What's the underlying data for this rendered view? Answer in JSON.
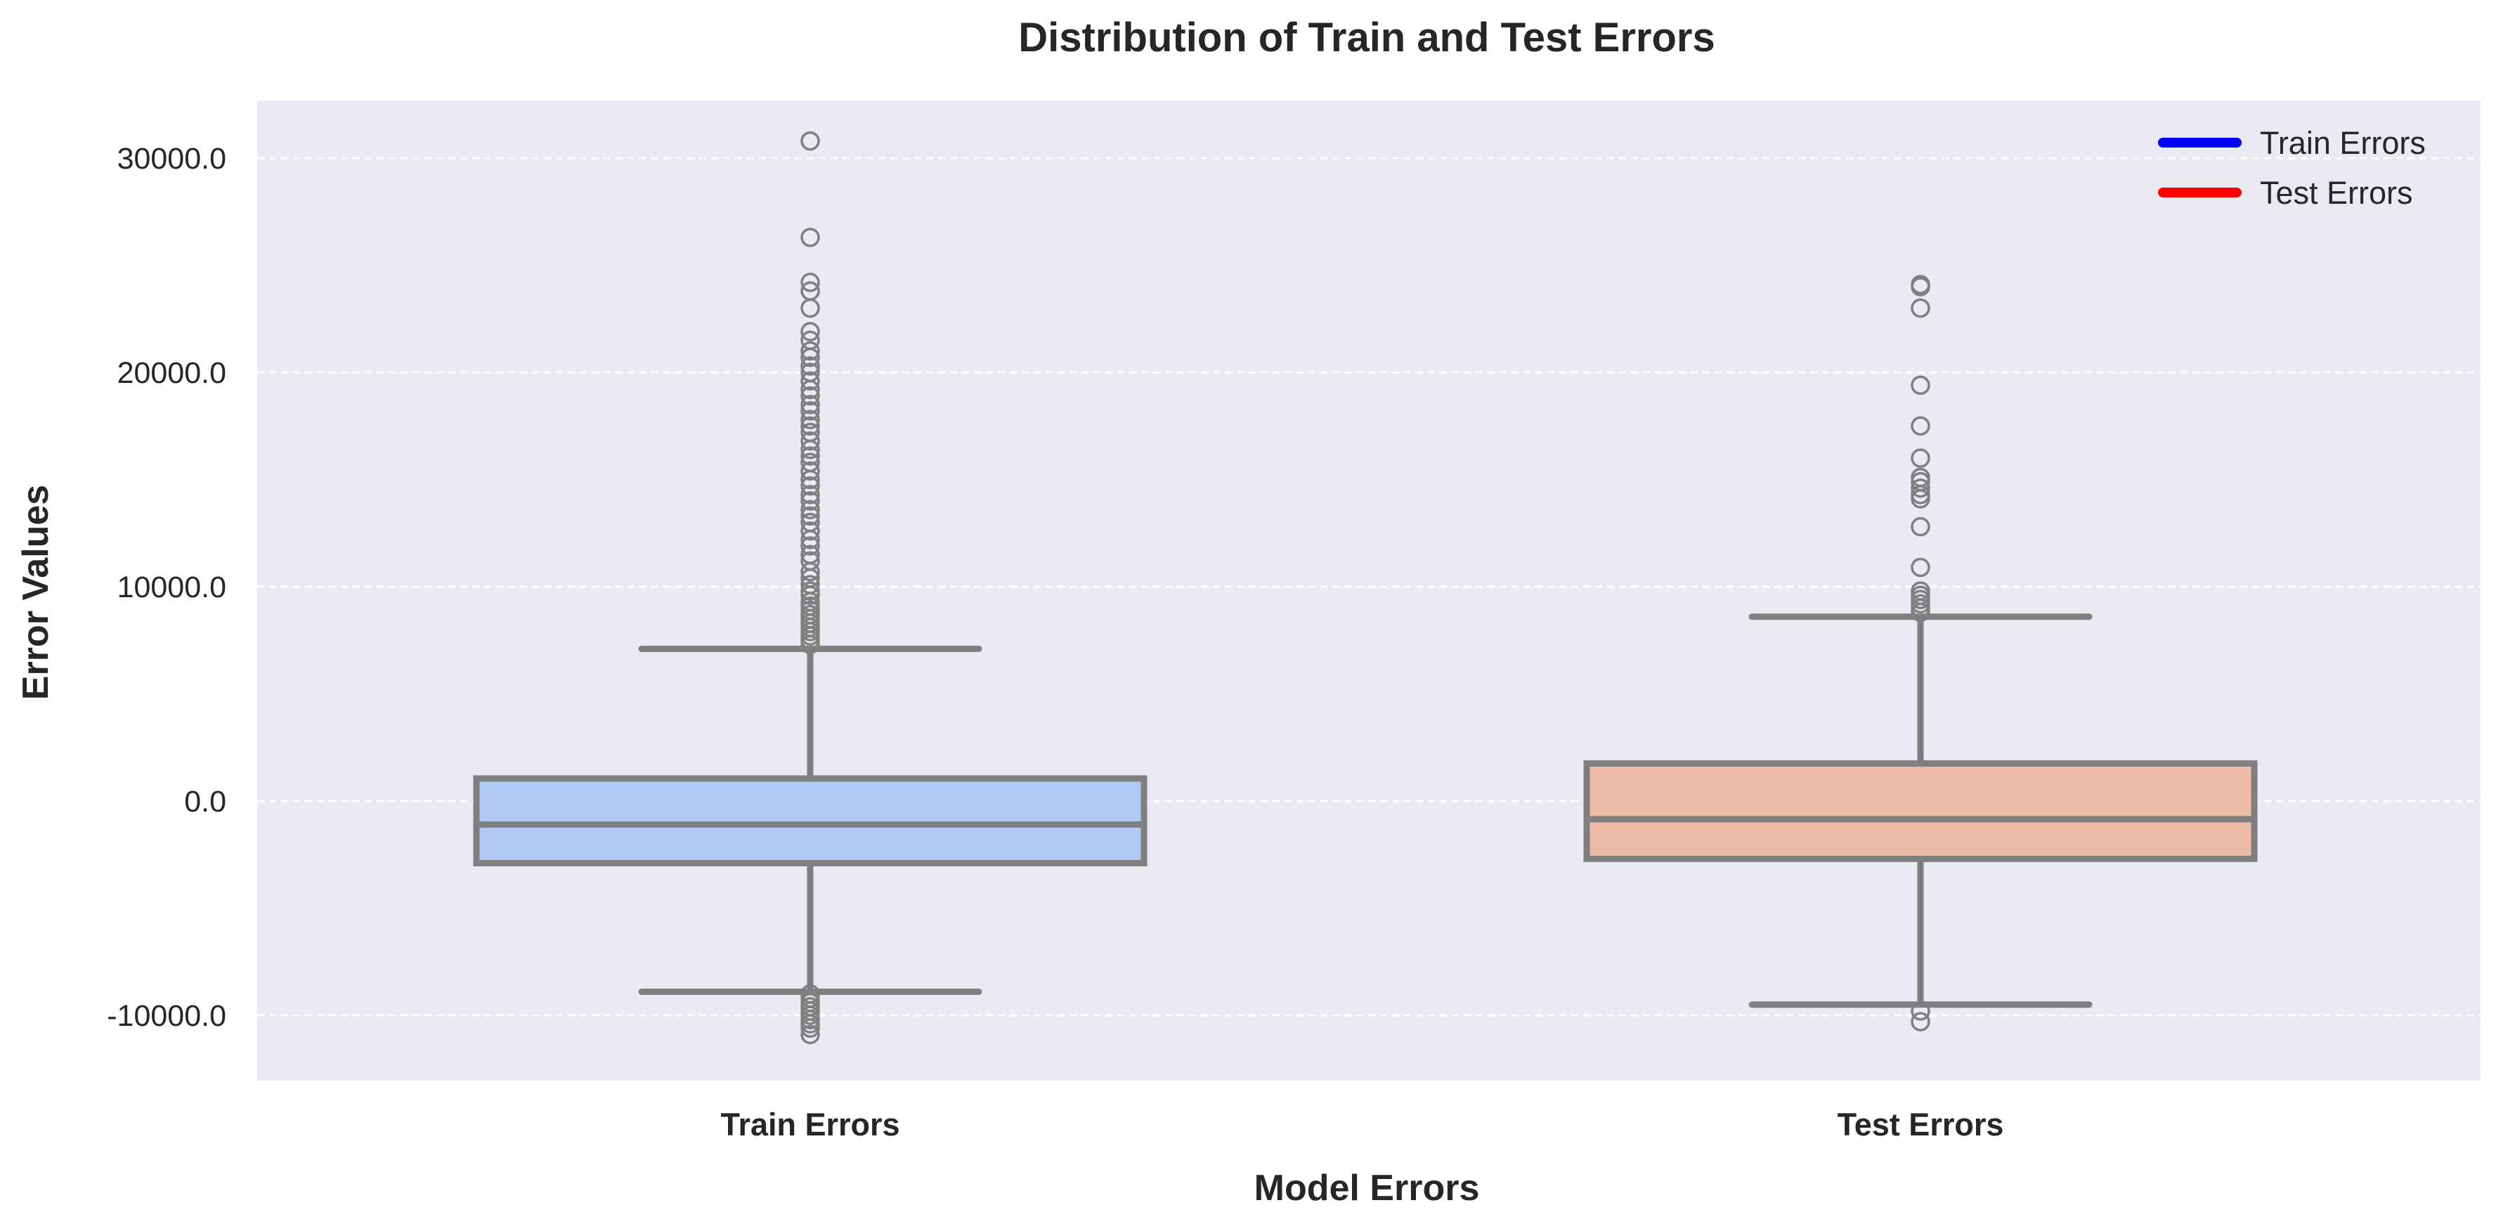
{
  "chart_data": {
    "type": "box",
    "title": "Distribution of Train and Test Errors",
    "xlabel": "Model Errors",
    "ylabel": "Error Values",
    "categories": [
      "Train Errors",
      "Test Errors"
    ],
    "ylim": [
      -13000,
      32700
    ],
    "yticks": [
      -10000,
      0,
      10000,
      20000,
      30000
    ],
    "ytick_labels": [
      "-10000.0",
      "0.0",
      "10000.0",
      "20000.0",
      "30000.0"
    ],
    "grid": true,
    "legend": {
      "placement": "top-right",
      "entries": [
        {
          "label": "Train Errors",
          "color": "#0000ff"
        },
        {
          "label": "Test Errors",
          "color": "#ff0000"
        }
      ]
    },
    "series": [
      {
        "category": "Train Errors",
        "fill_color": "#b1c9f5",
        "whisker_low": -8900,
        "q1": -2900,
        "median": -1100,
        "q3": 1050,
        "whisker_high": 7100,
        "outliers": [
          30800,
          26300,
          24200,
          23800,
          23000,
          21900,
          21500,
          21000,
          20700,
          20300,
          20000,
          19600,
          19200,
          18900,
          18500,
          18200,
          17800,
          17500,
          17200,
          16800,
          16400,
          16100,
          15800,
          15400,
          15000,
          14700,
          14300,
          14000,
          13600,
          13300,
          13000,
          12600,
          12200,
          11900,
          11500,
          11200,
          10700,
          10400,
          10100,
          9800,
          9600,
          9300,
          9100,
          8900,
          8700,
          8500,
          8300,
          8100,
          7900,
          7700,
          7500,
          7300,
          -9000,
          -9200,
          -9400,
          -9600,
          -9800,
          -10000,
          -10200,
          -10400,
          -10600,
          -10900
        ]
      },
      {
        "category": "Test Errors",
        "fill_color": "#edbba6",
        "whisker_low": -9500,
        "q1": -2700,
        "median": -850,
        "q3": 1750,
        "whisker_high": 8600,
        "outliers": [
          24100,
          24000,
          23000,
          19400,
          17500,
          16000,
          15100,
          14900,
          14600,
          14300,
          14100,
          12800,
          10900,
          9800,
          9600,
          9400,
          9200,
          9000,
          8800,
          -9800,
          -10300
        ]
      }
    ],
    "box_edge_color": "#7f7f7f",
    "plot_background": "#eaeaf2",
    "grid_color": "#ffffff"
  }
}
